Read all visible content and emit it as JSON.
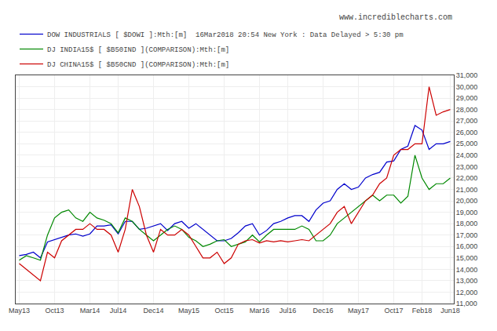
{
  "chart_data": {
    "type": "line",
    "categories": [
      "May13",
      null,
      null,
      null,
      null,
      "Oct13",
      null,
      null,
      null,
      null,
      "Mar14",
      null,
      null,
      null,
      "Jul14",
      null,
      null,
      null,
      null,
      "Dec14",
      null,
      null,
      null,
      null,
      "May15",
      null,
      null,
      null,
      null,
      "Oct15",
      null,
      null,
      null,
      null,
      "Mar16",
      null,
      null,
      null,
      "Jul16",
      null,
      null,
      null,
      null,
      "Dec16",
      null,
      null,
      null,
      null,
      "May17",
      null,
      null,
      null,
      null,
      "Oct17",
      null,
      null,
      null,
      "Feb18",
      null,
      null,
      null,
      "Jun18"
    ],
    "series": [
      {
        "name": "DOW INDUSTRIALS [ $DOWI ]:Mth:[m]  16Mar2018 20:54 New York : Data Delayed > 5:30 pm",
        "color": "#0000cc",
        "values": [
          15200,
          15300,
          15500,
          15000,
          16400,
          16600,
          16800,
          17000,
          17100,
          16900,
          17100,
          17800,
          17800,
          17900,
          17100,
          18200,
          18200,
          17500,
          17600,
          17800,
          18000,
          17400,
          18000,
          18200,
          17600,
          18000,
          17500,
          17000,
          16500,
          16500,
          16700,
          17200,
          17800,
          18000,
          17000,
          17400,
          18000,
          18200,
          18500,
          18700,
          18700,
          18200,
          19200,
          19800,
          20000,
          21000,
          21500,
          21000,
          21200,
          22000,
          22300,
          22500,
          23400,
          23500,
          24500,
          24800,
          26600,
          26200,
          24500,
          25000,
          25000,
          25200
        ]
      },
      {
        "name": "DJ INDIA15$ [ $B50IND ](COMPARISON):Mth:[m]",
        "color": "#008800",
        "values": [
          14800,
          15200,
          15000,
          14800,
          17000,
          18500,
          19000,
          19200,
          18500,
          18200,
          19000,
          18500,
          18300,
          18000,
          17200,
          18500,
          18200,
          17500,
          17000,
          16500,
          17000,
          17500,
          17800,
          17500,
          16800,
          16500,
          16000,
          16200,
          16500,
          16600,
          16000,
          16200,
          16400,
          17000,
          16400,
          17000,
          17500,
          17500,
          17500,
          17500,
          17800,
          17500,
          16500,
          16500,
          17000,
          18000,
          18500,
          19000,
          19500,
          20000,
          20500,
          20000,
          20500,
          20500,
          19800,
          20400,
          24000,
          22000,
          21000,
          21500,
          21500,
          22000
        ]
      },
      {
        "name": "DJ CHINA15$ [ $B50CND ](COMPARISON):Mth:[m]",
        "color": "#cc0000",
        "values": [
          14500,
          14000,
          13500,
          13000,
          15500,
          15000,
          16500,
          17000,
          17500,
          17500,
          18000,
          17500,
          17500,
          17000,
          15500,
          17500,
          21000,
          19500,
          17000,
          15500,
          17500,
          17000,
          17000,
          17500,
          17000,
          16000,
          15000,
          15000,
          15500,
          14500,
          15000,
          16200,
          16500,
          16600,
          16300,
          16500,
          16400,
          16500,
          16400,
          16500,
          16600,
          16500,
          17000,
          17500,
          18000,
          19000,
          19500,
          18000,
          19000,
          20000,
          20500,
          21500,
          22000,
          24000,
          24500,
          24500,
          25000,
          25000,
          30000,
          27500,
          27800,
          28000
        ]
      }
    ],
    "ylim": [
      11000,
      31000
    ],
    "yticks": [
      {
        "value": 11000,
        "label": "11,000"
      },
      {
        "value": 12000,
        "label": "12,000"
      },
      {
        "value": 13000,
        "label": "13,000"
      },
      {
        "value": 14000,
        "label": "14,000"
      },
      {
        "value": 15000,
        "label": "15,000"
      },
      {
        "value": 16000,
        "label": "16,000"
      },
      {
        "value": 17000,
        "label": "17,000"
      },
      {
        "value": 18000,
        "label": "18,000"
      },
      {
        "value": 19000,
        "label": "19,000"
      },
      {
        "value": 20000,
        "label": "20,000"
      },
      {
        "value": 21000,
        "label": "21,000"
      },
      {
        "value": 22000,
        "label": "22,000"
      },
      {
        "value": 23000,
        "label": "23,000"
      },
      {
        "value": 24000,
        "label": "24,000"
      },
      {
        "value": 25000,
        "label": "25,000"
      },
      {
        "value": 26000,
        "label": "26,000"
      },
      {
        "value": 27000,
        "label": "27,000"
      },
      {
        "value": 28000,
        "label": "28,000"
      },
      {
        "value": 29000,
        "label": "29,000"
      },
      {
        "value": 30000,
        "label": "30,000"
      },
      {
        "value": 31000,
        "label": "31,000"
      }
    ],
    "grid": true,
    "legend": "top",
    "annotations": [
      "www.incrediblecharts.com"
    ]
  }
}
